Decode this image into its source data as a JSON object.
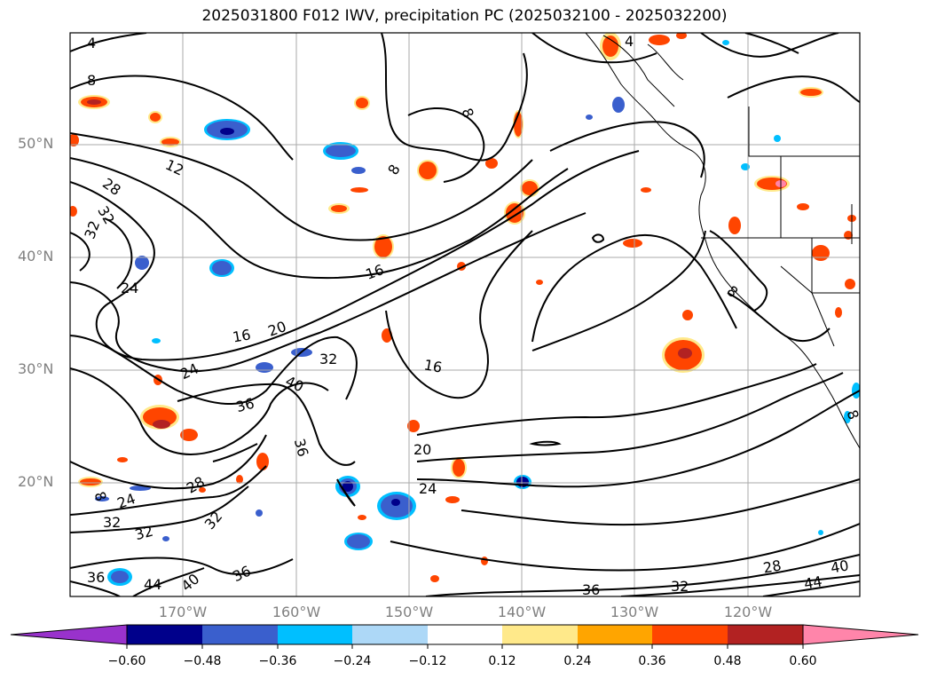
{
  "title": "2025031800 F012 IWV, precipitation PC (2025032100 - 2025032200)",
  "lat_labels": [
    "50°N",
    "40°N",
    "30°N",
    "20°N"
  ],
  "lon_labels": [
    "170°W",
    "160°W",
    "150°W",
    "140°W",
    "130°W",
    "120°W"
  ],
  "colorbar": {
    "ticks": [
      "−0.60",
      "−0.48",
      "−0.36",
      "−0.24",
      "−0.12",
      "0.12",
      "0.24",
      "0.36",
      "0.48",
      "0.60"
    ],
    "colors": {
      "under": "#9932cc",
      "c1": "#00008b",
      "c2": "#3a5fcd",
      "c3": "#00bfff",
      "c4": "#add8f7",
      "c5": "#ffffff",
      "c6": "#ffe98a",
      "c7": "#ffa500",
      "c8": "#ff4500",
      "c9": "#b22222",
      "over": "#ff85aa"
    }
  },
  "contour_labels": [
    "4",
    "8",
    "12",
    "28",
    "32",
    "32",
    "24",
    "16",
    "20",
    "16",
    "24",
    "8",
    "32",
    "40",
    "36",
    "16",
    "36",
    "20",
    "24",
    "28",
    "24",
    "32",
    "32",
    "32",
    "36",
    "44",
    "40",
    "36",
    "36",
    "32",
    "28",
    "44",
    "40",
    "8",
    "8",
    "8",
    "8",
    "4"
  ]
}
